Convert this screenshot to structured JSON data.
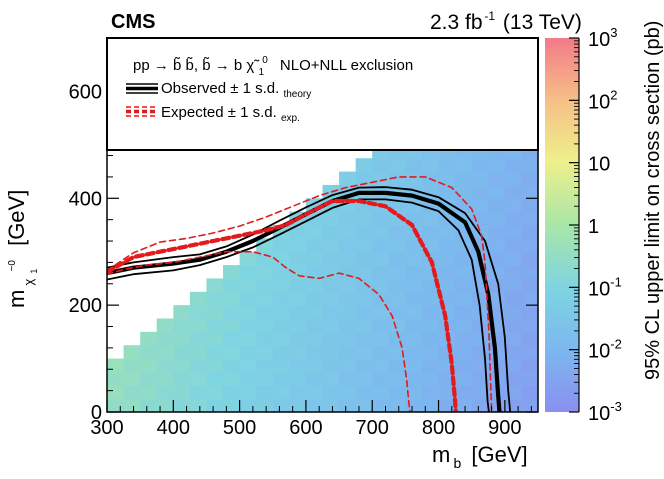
{
  "chart_data": {
    "type": "heatmap",
    "experiment": "CMS",
    "lumi_main": "2.3 fb",
    "lumi_exp": "-1",
    "lumi_energy": "(13 TeV)",
    "xlabel_main": "m",
    "xlabel_sub": "b",
    "xlabel_unit": "[GeV]",
    "ylabel_main": "m",
    "ylabel_sub": "χ",
    "ylabel_sub2": "1",
    "ylabel_sup": "~0",
    "ylabel_unit": "[GeV]",
    "zlabel": "95% CL upper limit on cross section (pb)",
    "xlim": [
      300,
      950
    ],
    "ylim": [
      0,
      700
    ],
    "zlim_log10": [
      -3,
      3
    ],
    "x_ticks": [
      "300",
      "400",
      "500",
      "600",
      "700",
      "800",
      "900"
    ],
    "y_ticks": [
      "0",
      "200",
      "400",
      "600"
    ],
    "z_ticks": [
      {
        "base": "10",
        "exp": "3",
        "log": 3
      },
      {
        "base": "10",
        "exp": "2",
        "log": 2
      },
      {
        "base": "10",
        "exp": "",
        "log": 1
      },
      {
        "base": "1",
        "exp": "",
        "log": 0
      },
      {
        "base": "10",
        "exp": "-1",
        "log": -1
      },
      {
        "base": "10",
        "exp": "-2",
        "log": -2
      },
      {
        "base": "10",
        "exp": "-3",
        "log": -3
      }
    ],
    "legend": {
      "process_line": "pp → b̃ b̃, b̃ → b χ̃",
      "process_sub": "1",
      "process_sup": "0",
      "process_tail": "NLO+NLL exclusion",
      "observed": "Observed ± 1 s.d.",
      "observed_sub": "theory",
      "expected": "Expected ± 1 s.d.",
      "expected_sub": "exp."
    },
    "series": [
      {
        "name": "Observed",
        "style": "obs-central",
        "x": [
          300,
          340,
          400,
          440,
          480,
          520,
          560,
          600,
          640,
          680,
          720,
          760,
          800,
          840,
          860,
          875,
          885,
          890,
          892
        ],
        "y": [
          260,
          270,
          278,
          285,
          300,
          320,
          345,
          370,
          395,
          410,
          410,
          405,
          390,
          355,
          300,
          220,
          120,
          30,
          0
        ]
      },
      {
        "name": "Observed +1 s.d. theory",
        "style": "obs-band",
        "x": [
          300,
          340,
          400,
          440,
          480,
          520,
          560,
          600,
          640,
          680,
          720,
          760,
          800,
          840,
          870,
          890,
          900,
          905,
          908
        ],
        "y": [
          270,
          280,
          290,
          295,
          310,
          332,
          358,
          383,
          406,
          420,
          421,
          416,
          402,
          372,
          320,
          240,
          140,
          40,
          0
        ]
      },
      {
        "name": "Observed -1 s.d. theory",
        "style": "obs-band",
        "x": [
          300,
          340,
          400,
          440,
          480,
          520,
          560,
          600,
          640,
          680,
          720,
          760,
          800,
          830,
          850,
          862,
          870,
          874,
          876
        ],
        "y": [
          248,
          258,
          265,
          275,
          290,
          308,
          332,
          357,
          382,
          398,
          398,
          392,
          376,
          340,
          285,
          200,
          100,
          20,
          0
        ]
      },
      {
        "name": "Expected",
        "style": "exp-central",
        "x": [
          300,
          340,
          380,
          420,
          460,
          500,
          540,
          570,
          600,
          640,
          680,
          720,
          760,
          790,
          810,
          820,
          825,
          826
        ],
        "y": [
          262,
          290,
          300,
          310,
          320,
          330,
          340,
          350,
          370,
          395,
          395,
          385,
          350,
          280,
          180,
          90,
          20,
          0
        ]
      },
      {
        "name": "Expected +1 s.d. exp.",
        "style": "exp-band",
        "x": [
          300,
          340,
          380,
          420,
          460,
          500,
          540,
          580,
          620,
          660,
          700,
          740,
          780,
          820,
          850,
          865,
          870,
          876,
          880
        ],
        "y": [
          265,
          298,
          318,
          325,
          335,
          348,
          365,
          385,
          405,
          420,
          430,
          440,
          440,
          420,
          380,
          330,
          280,
          150,
          0
        ]
      },
      {
        "name": "Expected -1 s.d. exp.",
        "style": "exp-band",
        "x": [
          300,
          330,
          360,
          400,
          440,
          480,
          520,
          550,
          570,
          590,
          620,
          650,
          680,
          710,
          730,
          745,
          752,
          755,
          757
        ],
        "y": [
          258,
          268,
          275,
          280,
          290,
          300,
          300,
          290,
          270,
          255,
          250,
          260,
          250,
          220,
          180,
          120,
          60,
          20,
          0
        ]
      }
    ]
  }
}
